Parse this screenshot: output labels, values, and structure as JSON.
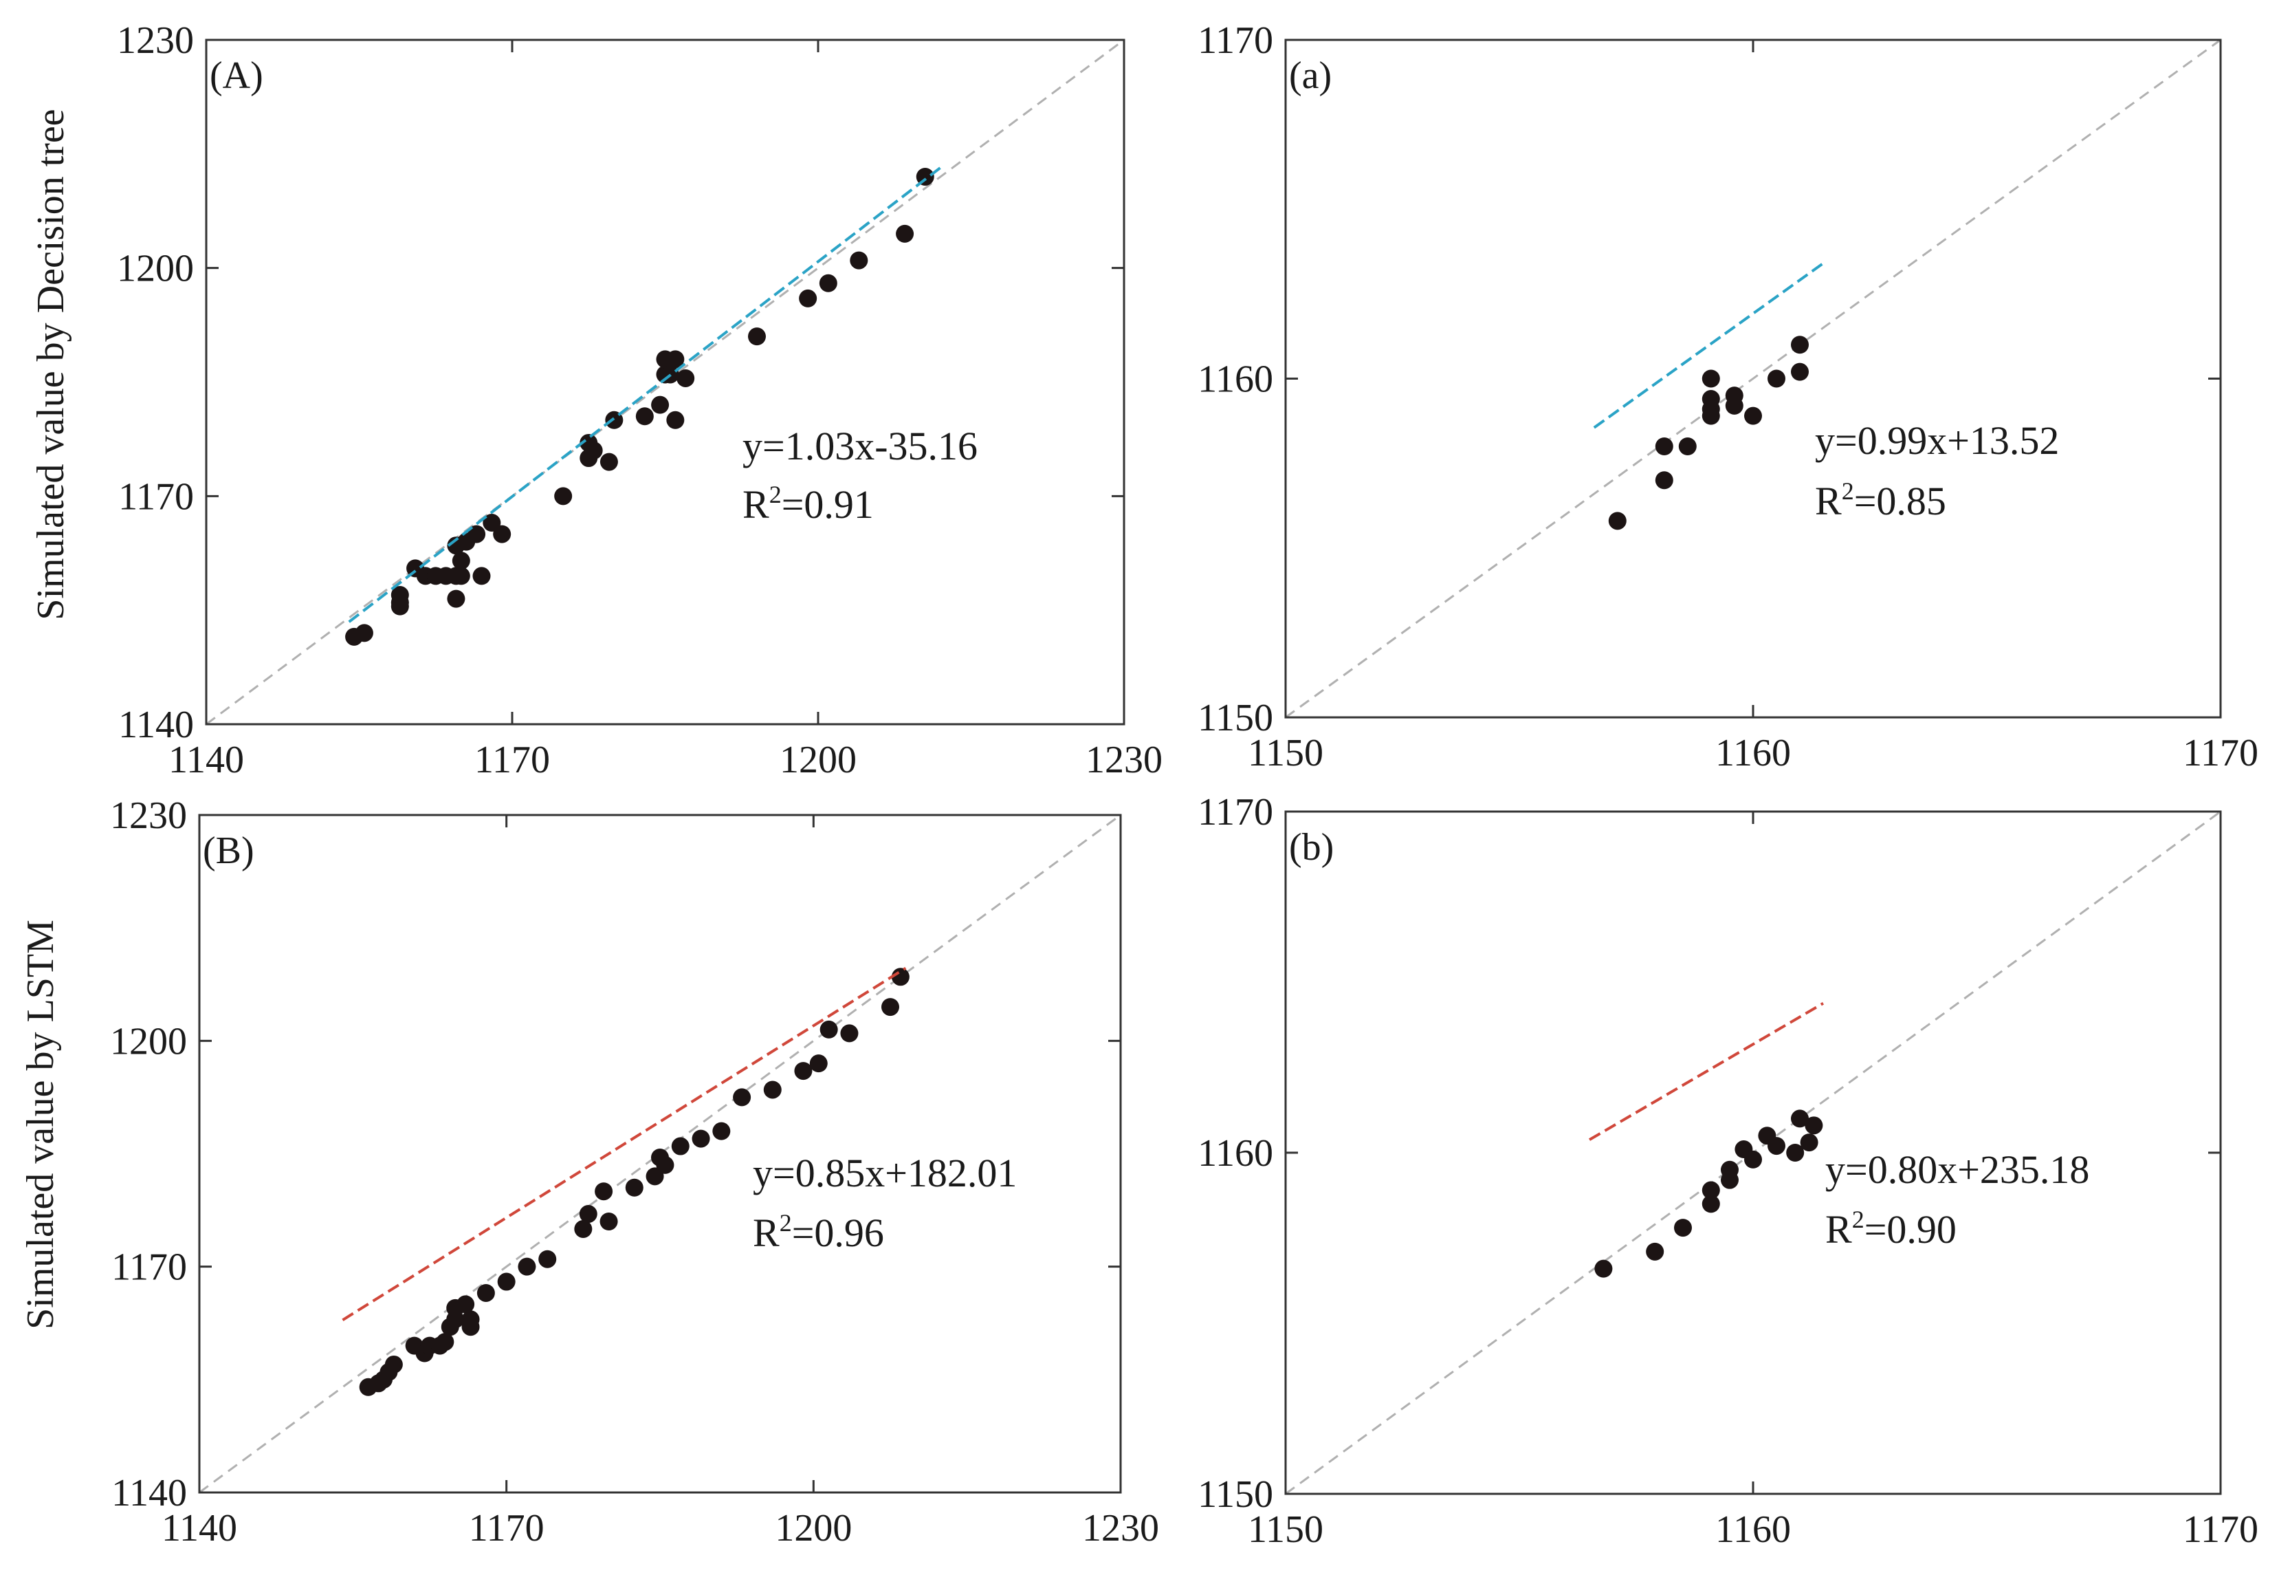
{
  "figure": {
    "ylabel_top": "Simulated value by Decision tree",
    "ylabel_bottom": "Simulated value by LSTM"
  },
  "chart_data": [
    {
      "type": "scatter",
      "panel_label": "(A)",
      "xlim": [
        1140,
        1230
      ],
      "ylim": [
        1140,
        1230
      ],
      "xticks": [
        1140,
        1170,
        1200,
        1230
      ],
      "yticks": [
        1140,
        1170,
        1200,
        1230
      ],
      "ylabel": "Simulated value by Decision tree",
      "equation": "y=1.03x-35.16",
      "r2_prefix": "R",
      "r2_sup": "2",
      "r2_value": "=0.91",
      "fit": {
        "slope": 1.03,
        "intercept": -35.16,
        "x_range": [
          1154,
          1212
        ],
        "color": "#2aa3c6"
      },
      "identity_color": "#b0b0b0",
      "points_x": [
        1154.5,
        1155.5,
        1159,
        1159,
        1159,
        1160.5,
        1161.5,
        1162.5,
        1163.5,
        1164.5,
        1164.5,
        1164.5,
        1165,
        1165,
        1165.5,
        1166.5,
        1167,
        1168,
        1169,
        1175,
        1177.5,
        1177.5,
        1178,
        1179.5,
        1180,
        1183,
        1184.5,
        1185,
        1185,
        1185.5,
        1186,
        1186,
        1187,
        1194,
        1199,
        1201,
        1204,
        1208.5,
        1210.5
      ],
      "points_y": [
        1151.5,
        1152,
        1155.5,
        1156,
        1157,
        1160.5,
        1159.5,
        1159.5,
        1159.5,
        1159.5,
        1156.5,
        1163.5,
        1159.5,
        1161.5,
        1164,
        1165,
        1159.5,
        1166.5,
        1165,
        1170,
        1175,
        1177,
        1176,
        1174.5,
        1180,
        1180.5,
        1182,
        1186,
        1188,
        1186,
        1180,
        1188,
        1185.5,
        1191,
        1196,
        1198,
        1201,
        1204.5,
        1212
      ]
    },
    {
      "type": "scatter",
      "panel_label": "(a)",
      "xlim": [
        1150,
        1170
      ],
      "ylim": [
        1150,
        1170
      ],
      "xticks": [
        1150,
        1160,
        1170
      ],
      "yticks": [
        1150,
        1160,
        1170
      ],
      "ylabel": "",
      "equation": "y=0.99x+13.52",
      "r2_prefix": "R",
      "r2_sup": "2",
      "r2_value": "=0.85",
      "fit": {
        "slope": 0.99,
        "intercept": 13.52,
        "x_range": [
          1156.6,
          1161.5
        ],
        "color": "#2aa3c6"
      },
      "identity_color": "#b0b0b0",
      "points_x": [
        1157.1,
        1158.1,
        1158.1,
        1158.6,
        1159.1,
        1159.1,
        1159.1,
        1159.1,
        1159.6,
        1159.6,
        1160,
        1160.5,
        1161,
        1161
      ],
      "points_y": [
        1155.8,
        1157,
        1158,
        1158,
        1160,
        1159.4,
        1159.1,
        1158.9,
        1159.2,
        1159.5,
        1158.9,
        1160,
        1161,
        1160.2
      ]
    },
    {
      "type": "scatter",
      "panel_label": "(B)",
      "xlim": [
        1140,
        1230
      ],
      "ylim": [
        1140,
        1230
      ],
      "xticks": [
        1140,
        1170,
        1200,
        1230
      ],
      "yticks": [
        1140,
        1170,
        1200,
        1230
      ],
      "ylabel": "Simulated value by LSTM",
      "equation": "y=0.85x+182.01",
      "r2_prefix": "R",
      "r2_sup": "2",
      "r2_value": "=0.96",
      "fit": {
        "slope": 0.85,
        "intercept": 182.01,
        "x_range": [
          1154,
          1209
        ],
        "color": "#d0473a"
      },
      "identity_color": "#b0b0b0",
      "points_x": [
        1156.5,
        1157.5,
        1158,
        1158.5,
        1159,
        1161,
        1162,
        1162.5,
        1163.5,
        1164,
        1164.5,
        1165,
        1165,
        1166,
        1166.5,
        1166.5,
        1168,
        1170,
        1172,
        1174,
        1177.5,
        1178,
        1179.5,
        1180,
        1182.5,
        1184.5,
        1185,
        1185.5,
        1187,
        1189,
        1191,
        1193,
        1196,
        1199,
        1200.5,
        1201.5,
        1203.5,
        1207.5,
        1208.5
      ],
      "points_y": [
        1154,
        1154.5,
        1155,
        1156,
        1157,
        1159.5,
        1158.5,
        1159.5,
        1159.5,
        1160,
        1162,
        1163,
        1164.5,
        1165,
        1163,
        1162,
        1166.5,
        1168,
        1170,
        1171,
        1175,
        1177,
        1180,
        1176,
        1180.5,
        1182,
        1184.5,
        1183.5,
        1186,
        1187,
        1188,
        1192.5,
        1193.5,
        1196,
        1197,
        1201.5,
        1201,
        1204.5,
        1208.5
      ]
    },
    {
      "type": "scatter",
      "panel_label": "(b)",
      "xlim": [
        1150,
        1170
      ],
      "ylim": [
        1150,
        1170
      ],
      "xticks": [
        1150,
        1160,
        1170
      ],
      "yticks": [
        1150,
        1160,
        1170
      ],
      "ylabel": "",
      "equation": "y=0.80x+235.18",
      "r2_prefix": "R",
      "r2_sup": "2",
      "r2_value": "=0.90",
      "fit": {
        "slope": 0.8,
        "intercept": 235.18,
        "x_range": [
          1156.5,
          1161.5
        ],
        "color": "#d0473a"
      },
      "identity_color": "#b0b0b0",
      "points_x": [
        1156.8,
        1157.9,
        1158.5,
        1159.1,
        1159.1,
        1159.5,
        1159.5,
        1159.8,
        1160,
        1160.3,
        1160.5,
        1160.9,
        1161,
        1161.2,
        1161.3
      ],
      "points_y": [
        1156.6,
        1157.1,
        1157.8,
        1158.5,
        1158.9,
        1159.2,
        1159.5,
        1160.1,
        1159.8,
        1160.5,
        1160.2,
        1160,
        1161,
        1160.3,
        1160.8
      ]
    }
  ]
}
